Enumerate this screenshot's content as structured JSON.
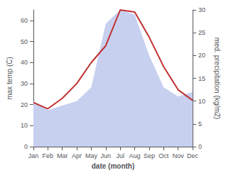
{
  "chart_data": {
    "type": "line",
    "categories": [
      "Jan",
      "Feb",
      "Mar",
      "Apr",
      "May",
      "Jun",
      "Jul",
      "Aug",
      "Sep",
      "Oct",
      "Nov",
      "Dec"
    ],
    "series": [
      {
        "type": "area",
        "color": "#c8d0f0",
        "axis": "y2",
        "values": [
          10,
          8,
          9,
          10,
          13,
          27,
          30,
          29,
          20,
          13,
          11,
          12
        ]
      },
      {
        "type": "line",
        "color": "#c03030",
        "values": [
          21,
          18,
          23,
          30,
          40,
          48,
          65,
          64,
          52,
          38,
          27,
          22
        ]
      }
    ],
    "xlabel": "date (month)",
    "ylabel": "max temp (C)",
    "y2label": "med. precipitation (kg/m2)",
    "ylim": [
      0,
      65
    ],
    "yticks": [
      0,
      10,
      20,
      30,
      40,
      50,
      60
    ],
    "y2lim": [
      0,
      30
    ],
    "y2ticks": [
      0,
      5,
      10,
      15,
      20,
      25,
      30
    ],
    "grid": false
  }
}
